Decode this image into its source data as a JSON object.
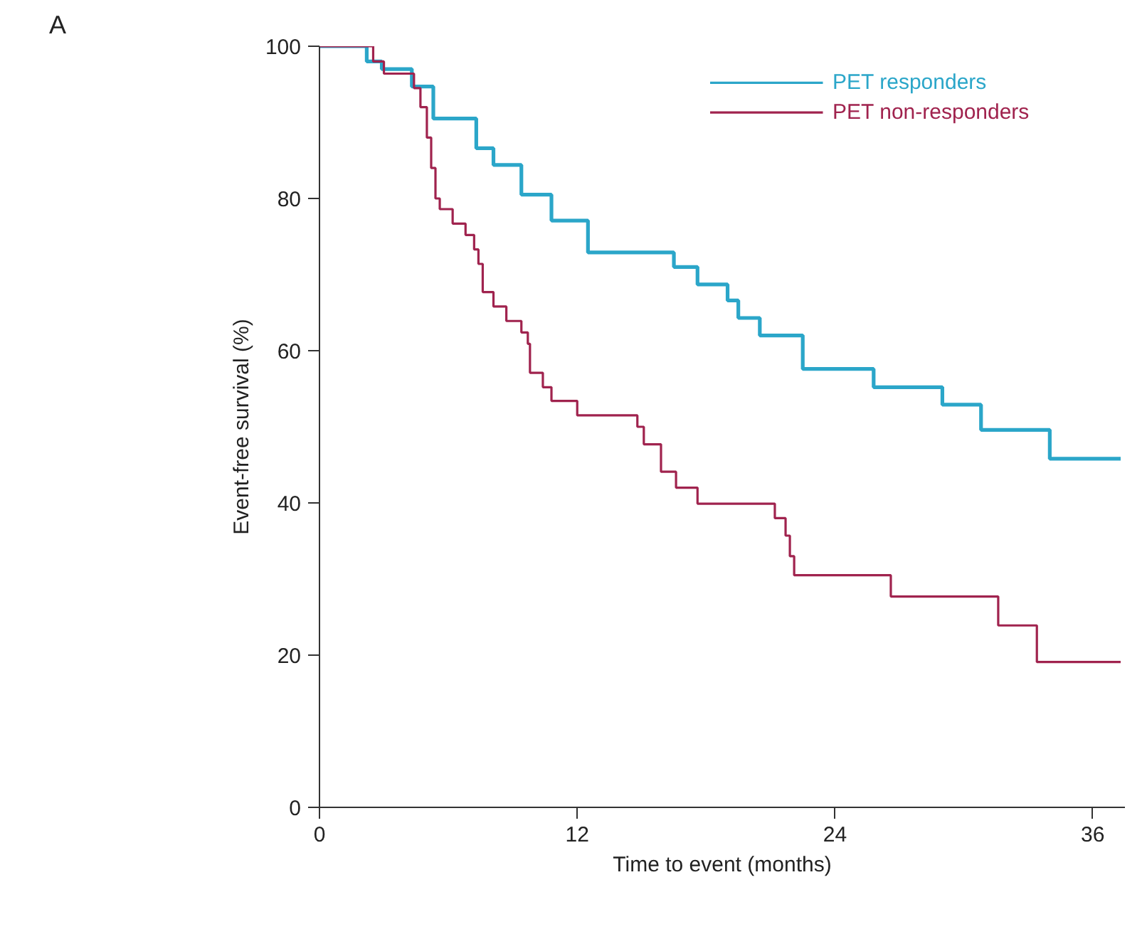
{
  "chart_data": {
    "type": "step",
    "xlabel": "Time to event (months)",
    "ylabel": "Event-free survival (%)",
    "xlim": [
      0,
      37.5
    ],
    "ylim": [
      0,
      100
    ],
    "xticks": [
      0,
      12,
      24,
      36
    ],
    "yticks": [
      0,
      20,
      40,
      60,
      80,
      100
    ],
    "grid": false,
    "legend": "top right",
    "annotations": [
      "A"
    ],
    "series": [
      {
        "name": "PET responders",
        "color": "#2ba6c9",
        "x": [
          0,
          2.2,
          2.9,
          4.3,
          5.3,
          7.3,
          8.1,
          9.4,
          10.8,
          12.5,
          16.5,
          17.6,
          19.0,
          19.5,
          20.5,
          22.5,
          25.8,
          29.0,
          30.8,
          34.0,
          37.3
        ],
        "values": [
          100,
          98,
          97,
          94.7,
          90.5,
          86.6,
          84.4,
          80.5,
          77.1,
          72.9,
          71.0,
          68.7,
          66.6,
          64.3,
          62.0,
          57.6,
          55.2,
          52.9,
          49.6,
          45.8,
          45.8
        ]
      },
      {
        "name": "PET non-responders",
        "color": "#a0234e",
        "x": [
          0,
          2.5,
          3.0,
          4.4,
          4.7,
          5.0,
          5.2,
          5.4,
          5.6,
          6.2,
          6.8,
          7.2,
          7.4,
          7.6,
          8.1,
          8.7,
          9.4,
          9.7,
          9.8,
          10.4,
          10.8,
          12.0,
          14.8,
          15.1,
          15.9,
          16.6,
          17.6,
          21.2,
          21.7,
          21.9,
          22.1,
          26.6,
          31.6,
          33.4,
          37.3
        ],
        "values": [
          100,
          98,
          96.4,
          94.5,
          92,
          88,
          84,
          80,
          78.6,
          76.7,
          75.2,
          73.3,
          71.4,
          67.7,
          65.8,
          63.9,
          62.4,
          60.9,
          57.1,
          55.2,
          53.4,
          51.5,
          50.0,
          47.7,
          44.1,
          42.0,
          39.9,
          38.0,
          35.7,
          33.0,
          30.5,
          27.7,
          23.9,
          19.1,
          19.1
        ]
      }
    ]
  }
}
